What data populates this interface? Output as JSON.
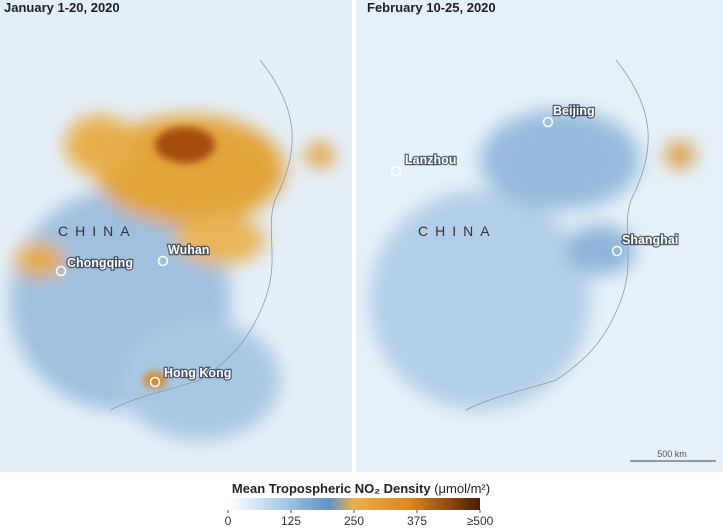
{
  "panels": [
    {
      "title": "January 1-20, 2020",
      "country": "CHINA",
      "cities": [
        "Chongqing",
        "Wuhan",
        "Hong Kong"
      ]
    },
    {
      "title": "February 10-25, 2020",
      "country": "CHINA",
      "cities": [
        "Beijing",
        "Lanzhou",
        "Shanghai"
      ],
      "scale_bar": "500 km"
    }
  ],
  "legend": {
    "title": "Mean Tropospheric NO₂ Density",
    "unit": "(μmol/m²)",
    "ticks": [
      0,
      125,
      250,
      375,
      {
        "value": 500,
        "label": "≥500"
      }
    ]
  }
}
